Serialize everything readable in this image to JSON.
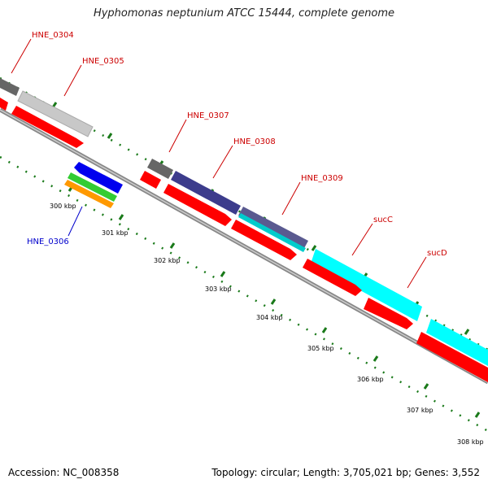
{
  "title": "Hyphomonas neptunium ATCC 15444, complete genome",
  "footer": {
    "accession": "Accession: NC_008358",
    "summary": "Topology: circular; Length: 3,705,021 bp; Genes: 3,552"
  },
  "ticks": [
    "300 kbp",
    "301 kbp",
    "302 kbp",
    "303 kbp",
    "304 kbp",
    "305 kbp",
    "306 kbp",
    "307 kbp",
    "308 kbp"
  ],
  "genes": [
    {
      "label": "HNE_0304",
      "color": "#cc0000"
    },
    {
      "label": "HNE_0305",
      "color": "#cc0000"
    },
    {
      "label": "HNE_0306",
      "color": "#0000cc"
    },
    {
      "label": "HNE_0307",
      "color": "#cc0000"
    },
    {
      "label": "HNE_0308",
      "color": "#cc0000"
    },
    {
      "label": "HNE_0309",
      "color": "#cc0000"
    },
    {
      "label": "sucC",
      "color": "#cc0000"
    },
    {
      "label": "sucD",
      "color": "#cc0000"
    }
  ],
  "colors": {
    "cds": "#ff0000",
    "blue": "#0000ee",
    "green": "#33cc33",
    "orange": "#ff9900",
    "navy": "#3c3c8c",
    "cyan": "#00ffff",
    "gray_dark": "#666666",
    "gray_light": "#c8c8c8",
    "tick_green": "#1a7a1a",
    "backbone": "#888888"
  }
}
